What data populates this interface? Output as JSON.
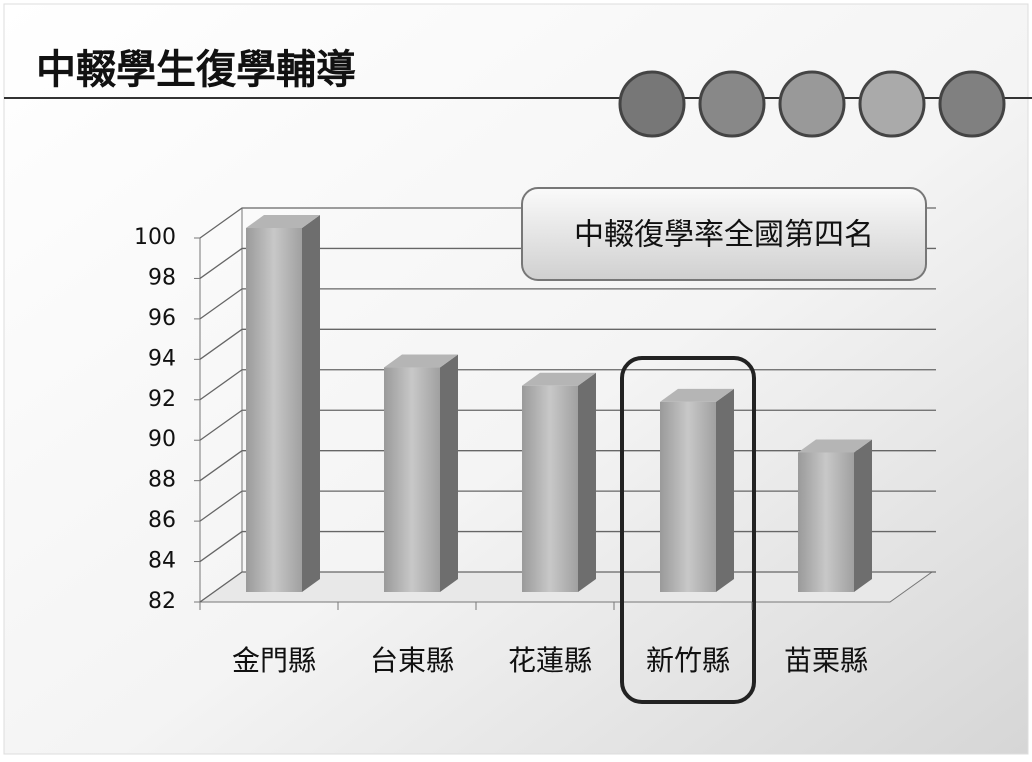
{
  "title": "中輟學生復學輔導",
  "chart_data": {
    "type": "bar3d",
    "categories": [
      "金門縣",
      "台東縣",
      "花蓮縣",
      "新竹縣",
      "苗栗縣"
    ],
    "values": [
      100,
      93.1,
      92.2,
      91.4,
      88.9
    ],
    "ylim": [
      82,
      100
    ],
    "yticks": [
      82,
      84,
      86,
      88,
      90,
      92,
      94,
      96,
      98,
      100
    ],
    "grid": true,
    "color": "#8a8a8a",
    "annotation": "中輟復學率全國第四名"
  }
}
